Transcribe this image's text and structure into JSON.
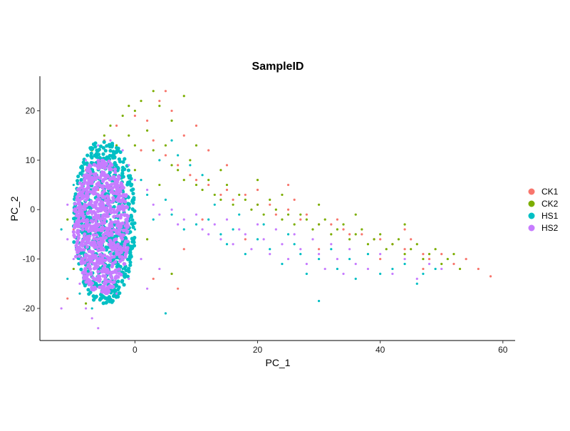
{
  "chart_data": {
    "type": "scatter",
    "title": "SampleID",
    "xlabel": "PC_1",
    "ylabel": "PC_2",
    "xlim": [
      -15.5,
      62
    ],
    "ylim": [
      -26.5,
      27
    ],
    "xticks": [
      0,
      20,
      40,
      60
    ],
    "yticks": [
      -20,
      -10,
      0,
      10,
      20
    ],
    "grid": false,
    "legend_position": "right",
    "colors": {
      "CK1": "#F8766D",
      "CK2": "#7CAE00",
      "HS1": "#00BFC4",
      "HS2": "#C77CFF"
    },
    "series": [
      {
        "name": "CK1",
        "color": "#F8766D",
        "points": [
          [
            -8,
            8
          ],
          [
            -5,
            14
          ],
          [
            -3,
            17
          ],
          [
            0,
            19
          ],
          [
            2,
            18
          ],
          [
            4,
            22
          ],
          [
            5,
            24
          ],
          [
            6,
            20
          ],
          [
            1,
            12
          ],
          [
            3,
            14
          ],
          [
            5,
            11
          ],
          [
            7,
            9
          ],
          [
            9,
            7
          ],
          [
            10,
            6
          ],
          [
            12,
            5
          ],
          [
            14,
            3
          ],
          [
            15,
            4
          ],
          [
            16,
            2
          ],
          [
            18,
            3
          ],
          [
            20,
            1
          ],
          [
            22,
            1
          ],
          [
            23,
            -1
          ],
          [
            25,
            0
          ],
          [
            27,
            -2
          ],
          [
            28,
            -1
          ],
          [
            30,
            -3
          ],
          [
            32,
            -3
          ],
          [
            34,
            -4
          ],
          [
            35,
            -5
          ],
          [
            37,
            -5
          ],
          [
            39,
            -6
          ],
          [
            40,
            -6
          ],
          [
            42,
            -7
          ],
          [
            44,
            -8
          ],
          [
            45,
            -6
          ],
          [
            47,
            -9
          ],
          [
            48,
            -10
          ],
          [
            50,
            -9
          ],
          [
            52,
            -11
          ],
          [
            54,
            -10
          ],
          [
            56,
            -12
          ],
          [
            58,
            -13.5
          ],
          [
            8,
            15
          ],
          [
            10,
            17
          ],
          [
            15,
            9
          ],
          [
            12,
            12
          ],
          [
            20,
            4
          ],
          [
            25,
            5
          ],
          [
            11,
            -2
          ],
          [
            18,
            -6
          ],
          [
            30,
            -8
          ],
          [
            40,
            -10
          ],
          [
            47,
            -12
          ],
          [
            7,
            -16
          ],
          [
            3,
            -14
          ],
          [
            -4,
            -18
          ],
          [
            -6,
            4
          ],
          [
            -10,
            -4
          ],
          [
            -9,
            -10
          ],
          [
            -11,
            -18
          ],
          [
            33,
            -2
          ],
          [
            44,
            -4
          ],
          [
            26,
            2
          ],
          [
            8,
            -8
          ]
        ]
      },
      {
        "name": "CK2",
        "color": "#7CAE00",
        "points": [
          [
            -7,
            12
          ],
          [
            -5,
            15
          ],
          [
            -4,
            17
          ],
          [
            -2,
            19
          ],
          [
            -1,
            21
          ],
          [
            0,
            20
          ],
          [
            1,
            22
          ],
          [
            3,
            24
          ],
          [
            4,
            21
          ],
          [
            6,
            18
          ],
          [
            -3,
            13
          ],
          [
            -1,
            15
          ],
          [
            0,
            13
          ],
          [
            2,
            16
          ],
          [
            3,
            12
          ],
          [
            5,
            13
          ],
          [
            6,
            9
          ],
          [
            7,
            8
          ],
          [
            8,
            6
          ],
          [
            9,
            10
          ],
          [
            10,
            5
          ],
          [
            11,
            4
          ],
          [
            12,
            6
          ],
          [
            13,
            3
          ],
          [
            14,
            2
          ],
          [
            15,
            5
          ],
          [
            16,
            1
          ],
          [
            17,
            3
          ],
          [
            18,
            2
          ],
          [
            19,
            0
          ],
          [
            20,
            1
          ],
          [
            21,
            -1
          ],
          [
            22,
            2
          ],
          [
            23,
            0
          ],
          [
            24,
            -2
          ],
          [
            25,
            -1
          ],
          [
            26,
            -3
          ],
          [
            27,
            -1
          ],
          [
            28,
            -2
          ],
          [
            29,
            -4
          ],
          [
            30,
            -3
          ],
          [
            31,
            -2
          ],
          [
            32,
            -5
          ],
          [
            33,
            -4
          ],
          [
            34,
            -3
          ],
          [
            35,
            -6
          ],
          [
            36,
            -5
          ],
          [
            37,
            -4
          ],
          [
            38,
            -7
          ],
          [
            39,
            -6
          ],
          [
            40,
            -5
          ],
          [
            41,
            -8
          ],
          [
            42,
            -7
          ],
          [
            43,
            -6
          ],
          [
            44,
            -9
          ],
          [
            45,
            -8
          ],
          [
            46,
            -7
          ],
          [
            47,
            -10
          ],
          [
            48,
            -9
          ],
          [
            49,
            -8
          ],
          [
            50,
            -11
          ],
          [
            51,
            -10
          ],
          [
            52,
            -9
          ],
          [
            53,
            -12
          ],
          [
            -9,
            2
          ],
          [
            -11,
            -2
          ],
          [
            -10,
            -12
          ],
          [
            -8,
            -19
          ],
          [
            6,
            -13
          ],
          [
            2,
            -6
          ],
          [
            8,
            23
          ],
          [
            0,
            8
          ],
          [
            4,
            5
          ],
          [
            10,
            13
          ],
          [
            14,
            8
          ],
          [
            20,
            6
          ],
          [
            24,
            3
          ],
          [
            30,
            1
          ],
          [
            36,
            -1
          ],
          [
            44,
            -3
          ]
        ]
      },
      {
        "name": "HS1",
        "color": "#00BFC4",
        "points": [
          [
            -10,
            5
          ],
          [
            -9,
            0
          ],
          [
            -8,
            -6
          ],
          [
            -8,
            -12
          ],
          [
            -9,
            -17
          ],
          [
            -7,
            -20
          ],
          [
            -6,
            8
          ],
          [
            -5,
            3
          ],
          [
            -4,
            -2
          ],
          [
            -3,
            -8
          ],
          [
            -2,
            -12
          ],
          [
            -1,
            0
          ],
          [
            0,
            -4
          ],
          [
            1,
            6
          ],
          [
            2,
            3
          ],
          [
            3,
            -2
          ],
          [
            4,
            10
          ],
          [
            5,
            2
          ],
          [
            6,
            -1
          ],
          [
            8,
            -4
          ],
          [
            10,
            -3
          ],
          [
            12,
            -2
          ],
          [
            14,
            -5
          ],
          [
            15,
            -7
          ],
          [
            16,
            -4
          ],
          [
            18,
            -9
          ],
          [
            20,
            -6
          ],
          [
            22,
            -8
          ],
          [
            24,
            -11
          ],
          [
            25,
            -5
          ],
          [
            27,
            -9
          ],
          [
            28,
            -13
          ],
          [
            30,
            -10
          ],
          [
            32,
            -8
          ],
          [
            33,
            -12
          ],
          [
            35,
            -10
          ],
          [
            36,
            -14
          ],
          [
            38,
            -9
          ],
          [
            40,
            -13
          ],
          [
            42,
            -12
          ],
          [
            44,
            -11
          ],
          [
            46,
            -15
          ],
          [
            47,
            -13
          ],
          [
            49,
            -12
          ],
          [
            30,
            -18.5
          ],
          [
            5,
            -21
          ],
          [
            -12,
            -4
          ],
          [
            -11,
            -14
          ],
          [
            6,
            14
          ],
          [
            7,
            11
          ],
          [
            9,
            9
          ],
          [
            11,
            7
          ],
          [
            13,
            1
          ],
          [
            17,
            -1
          ],
          [
            21,
            -3
          ],
          [
            26,
            -7
          ]
        ]
      },
      {
        "name": "HS2",
        "color": "#C77CFF",
        "points": [
          [
            -8,
            10
          ],
          [
            -6,
            13
          ],
          [
            -4,
            14
          ],
          [
            -2,
            12
          ],
          [
            -1,
            9
          ],
          [
            0,
            6
          ],
          [
            2,
            4
          ],
          [
            3,
            1
          ],
          [
            4,
            -1
          ],
          [
            6,
            0
          ],
          [
            7,
            -3
          ],
          [
            8,
            -2
          ],
          [
            10,
            -1
          ],
          [
            11,
            -4
          ],
          [
            12,
            -5
          ],
          [
            13,
            -3
          ],
          [
            14,
            -6
          ],
          [
            15,
            -2
          ],
          [
            16,
            -7
          ],
          [
            17,
            -4
          ],
          [
            18,
            -5
          ],
          [
            19,
            -8
          ],
          [
            20,
            -3
          ],
          [
            21,
            -6
          ],
          [
            22,
            -9
          ],
          [
            23,
            -4
          ],
          [
            24,
            -7
          ],
          [
            25,
            -10
          ],
          [
            26,
            -5
          ],
          [
            27,
            -8
          ],
          [
            28,
            -11
          ],
          [
            29,
            -6
          ],
          [
            30,
            -9
          ],
          [
            31,
            -12
          ],
          [
            32,
            -7
          ],
          [
            33,
            -10
          ],
          [
            34,
            -13
          ],
          [
            35,
            -8
          ],
          [
            36,
            -11
          ],
          [
            38,
            -12
          ],
          [
            40,
            -9
          ],
          [
            42,
            -13
          ],
          [
            44,
            -10
          ],
          [
            46,
            -14
          ],
          [
            48,
            -11
          ],
          [
            50,
            -12
          ],
          [
            -11,
            -6
          ],
          [
            -10,
            -10
          ],
          [
            -9,
            -15
          ],
          [
            -8,
            -20
          ],
          [
            -7,
            -22
          ],
          [
            -6,
            -24
          ],
          [
            -12,
            -20
          ],
          [
            -3,
            -17
          ],
          [
            -1,
            -14
          ],
          [
            1,
            -10
          ],
          [
            2,
            -16
          ],
          [
            4,
            -12
          ],
          [
            -5,
            -12
          ],
          [
            -7,
            -1
          ],
          [
            -9,
            4
          ],
          [
            -11,
            1
          ],
          [
            -4,
            6
          ],
          [
            -2,
            2
          ]
        ]
      }
    ],
    "dense_cores": [
      {
        "series": "HS1",
        "x": [
          -10,
          0
        ],
        "y": [
          -19,
          14
        ]
      },
      {
        "series": "HS2",
        "x": [
          -10,
          -1
        ],
        "y": [
          -17,
          10
        ]
      }
    ]
  }
}
